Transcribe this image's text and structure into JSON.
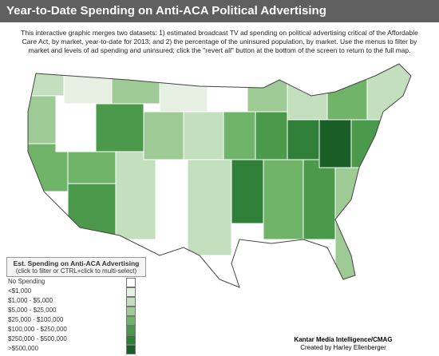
{
  "header": {
    "title": "Year-to-Date Spending on Anti-ACA Political Advertising"
  },
  "description": "This interactive graphic merges two datasets: 1) estimated broadcast TV ad spending on political advertising critical of the Affordable Care Act, by market, year-to-date for 2013; and 2) the percentage of the uninsured population, by market. Use the menus to filter by market and levels of ad spending and uninsured; click the \"revert all\" button at the bottom of the screen to return to the full map.",
  "legend": {
    "title": "Est. Spending on Anti-ACA Advertising",
    "subtitle": "(click to filter or CTRL+click to multi-select)",
    "items": [
      {
        "label": "No Spending",
        "color": "#ffffff"
      },
      {
        "label": "<$1,000",
        "color": "#e6f1e3"
      },
      {
        "label": "$1,000 - $5,000",
        "color": "#c3dfbe"
      },
      {
        "label": "$5,000 - $25,000",
        "color": "#9dca95"
      },
      {
        "label": "$25,000 - $100,000",
        "color": "#70b46a"
      },
      {
        "label": "$100,000 - $250,000",
        "color": "#4b9a4b"
      },
      {
        "label": "$250,000 - $500,000",
        "color": "#2f7f38"
      },
      {
        "label": ">$500,000",
        "color": "#1a5e27"
      }
    ]
  },
  "credits": [
    "Kantar Media Intelligence/CMAG",
    "Created by Harley Ellenberger"
  ]
}
